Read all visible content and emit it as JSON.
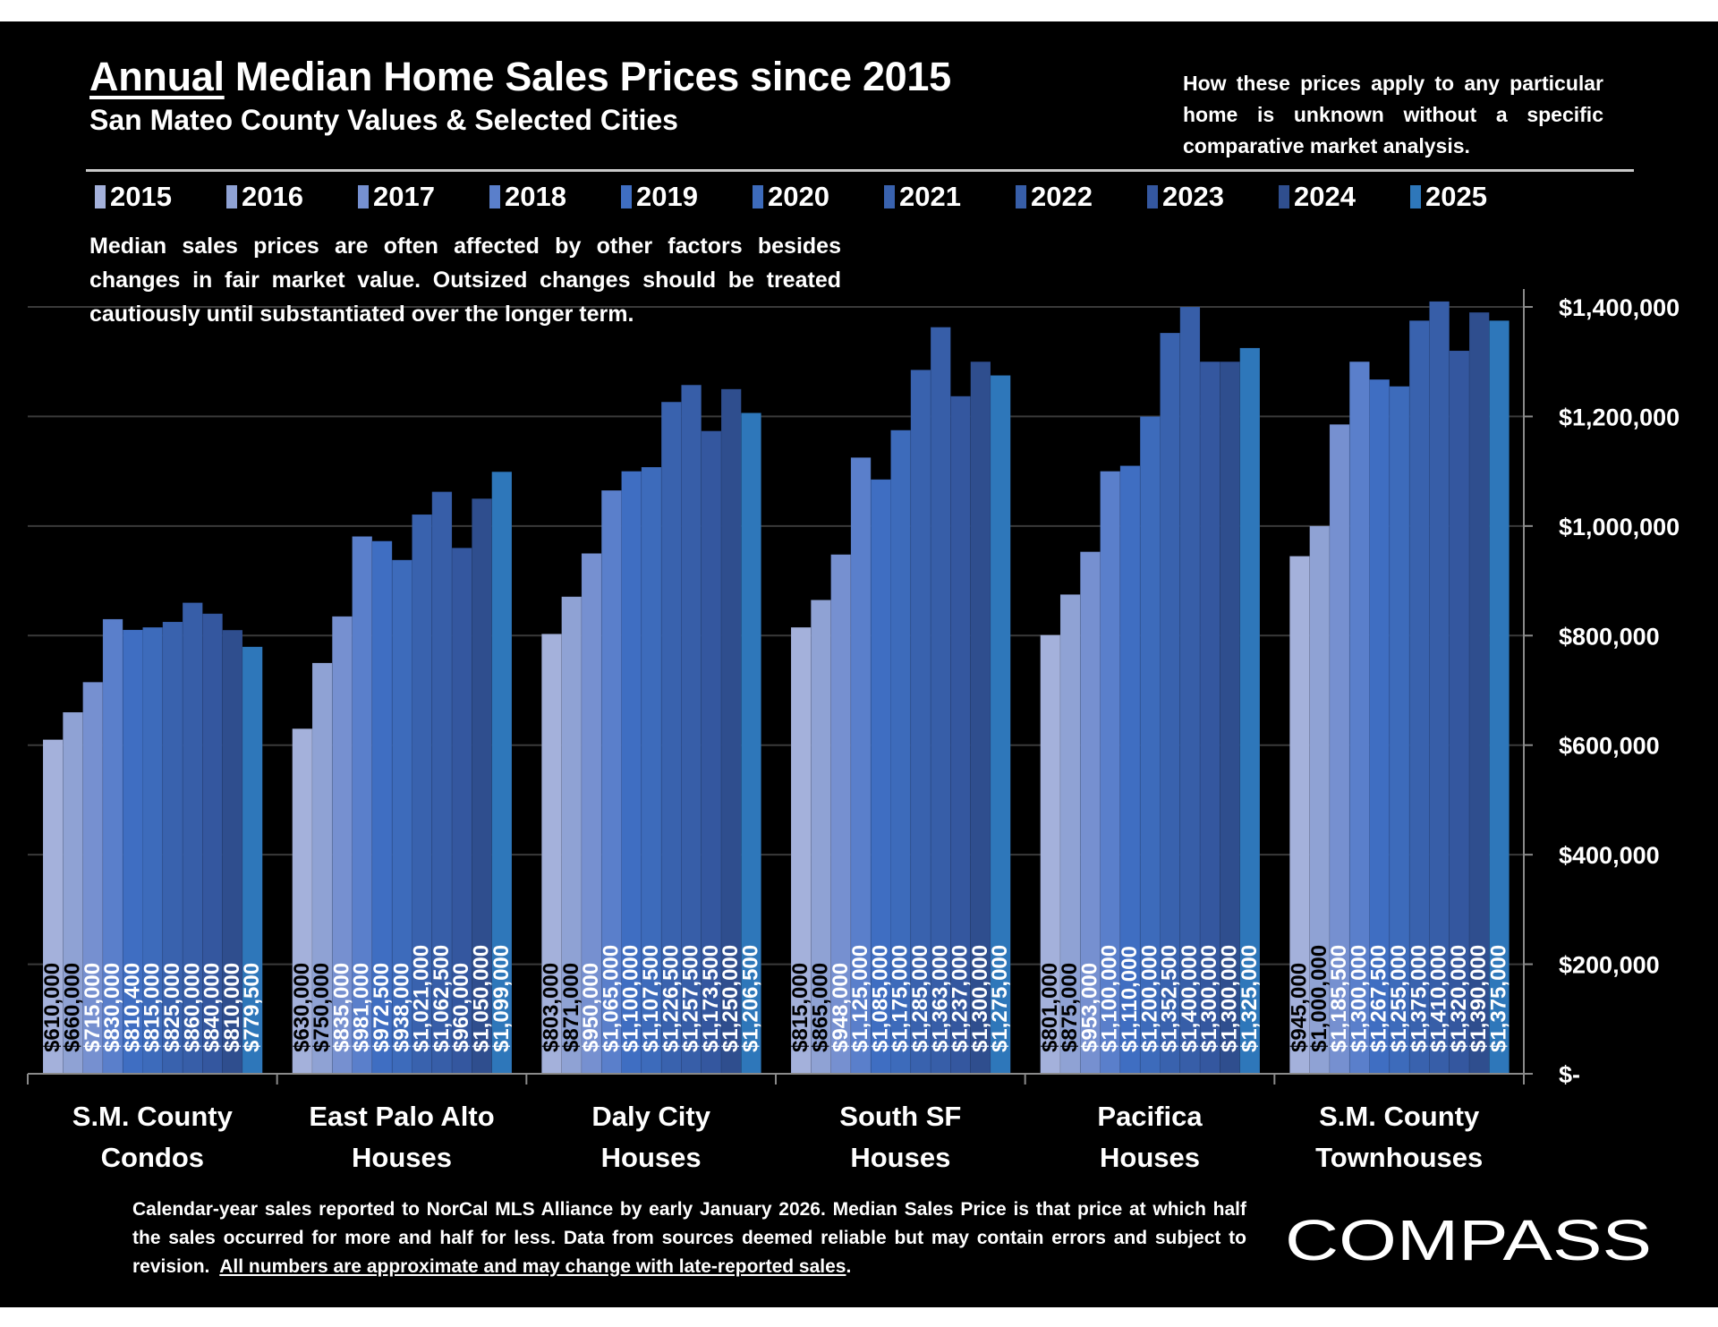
{
  "header": {
    "title_underlined": "Annual",
    "title_rest": " Median Home Sales Prices since 2015",
    "subtitle": "San Mateo County Values & Selected Cities",
    "right_note": "How these prices apply to any particular home is unknown without a specific comparative market analysis."
  },
  "caution_note": "Median sales prices are often affected by other factors besides changes in fair market value. Outsized changes should be treated cautiously until substantiated over the longer term.",
  "footer": {
    "note": "Calendar-year sales reported to NorCal MLS Alliance by early January 2026. Median Sales Price is that price at which half the sales occurred for more and half for less. Data from sources deemed reliable but may contain errors and subject to revision.",
    "note_underlined": "All numbers are approximate and may change with late-reported sales",
    "note_end": ".",
    "logo": "COMPASS"
  },
  "chart_data": {
    "type": "bar",
    "title": "Annual Median Home Sales Prices since 2015",
    "subtitle": "San Mateo County Values & Selected Cities",
    "xlabel": "",
    "ylabel": "",
    "ylim": [
      0,
      1400000
    ],
    "y_axis_position": "right",
    "y_ticks": [
      0,
      200000,
      400000,
      600000,
      800000,
      1000000,
      1200000,
      1400000
    ],
    "y_tick_labels": [
      "$-",
      "$200,000",
      "$400,000",
      "$600,000",
      "$800,000",
      "$1,000,000",
      "$1,200,000",
      "$1,400,000"
    ],
    "grid": true,
    "legend_position": "top",
    "categories": [
      [
        "S.M. County",
        "Condos"
      ],
      [
        "East Palo Alto",
        "Houses"
      ],
      [
        "Daly City",
        "Houses"
      ],
      [
        "South SF",
        "Houses"
      ],
      [
        "Pacifica",
        "Houses"
      ],
      [
        "S.M. County",
        "Townhouses"
      ]
    ],
    "series": [
      {
        "name": "2015",
        "color": "#A4B1DB",
        "values": [
          610000,
          630000,
          803000,
          815000,
          801000,
          945000
        ]
      },
      {
        "name": "2016",
        "color": "#8FA2D4",
        "values": [
          660000,
          750000,
          871000,
          865000,
          875000,
          1000000
        ]
      },
      {
        "name": "2017",
        "color": "#7690D0",
        "values": [
          715000,
          835000,
          950000,
          948000,
          953000,
          1185500
        ]
      },
      {
        "name": "2018",
        "color": "#5A7FCB",
        "values": [
          830000,
          981000,
          1065000,
          1125000,
          1100000,
          1300000
        ]
      },
      {
        "name": "2019",
        "color": "#3F6EC2",
        "values": [
          810400,
          972500,
          1100000,
          1085000,
          1110000,
          1267500
        ]
      },
      {
        "name": "2020",
        "color": "#3D6BBB",
        "values": [
          815000,
          938000,
          1107500,
          1175000,
          1200000,
          1255000
        ]
      },
      {
        "name": "2021",
        "color": "#3962AE",
        "values": [
          825000,
          1021000,
          1226500,
          1285000,
          1352500,
          1375000
        ]
      },
      {
        "name": "2022",
        "color": "#375EA8",
        "values": [
          860000,
          1062500,
          1257500,
          1363000,
          1400000,
          1410000
        ]
      },
      {
        "name": "2023",
        "color": "#34579F",
        "values": [
          840000,
          960000,
          1173500,
          1237000,
          1300000,
          1320000
        ]
      },
      {
        "name": "2024",
        "color": "#2F4E8E",
        "values": [
          810000,
          1050000,
          1250000,
          1300000,
          1300000,
          1390000
        ]
      },
      {
        "name": "2025",
        "color": "#2E77BA",
        "values": [
          779500,
          1099000,
          1206500,
          1275000,
          1325000,
          1375000
        ]
      }
    ],
    "data_label_format": "currency"
  }
}
